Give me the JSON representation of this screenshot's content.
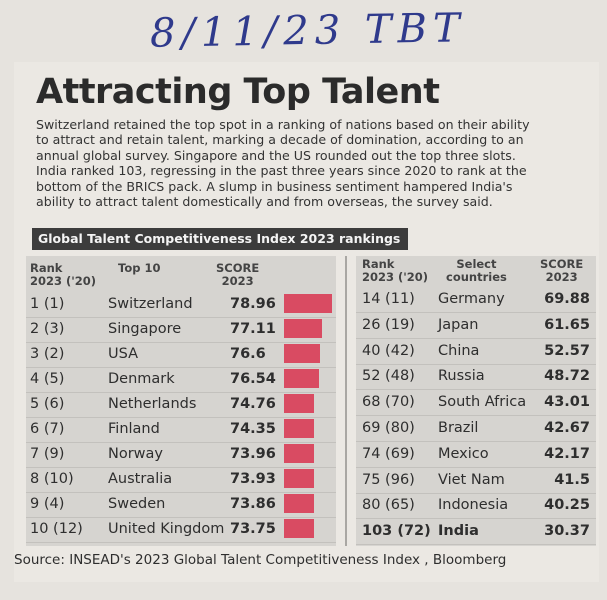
{
  "handwritten_note": "8/11/23 TBT",
  "article": {
    "title": "Attracting Top Talent",
    "intro_lines": [
      "Switzerland retained the top spot in a ranking of nations based on their ability",
      "to attract and retain talent, marking a decade of domination, according to an",
      "annual global survey. Singapore and the US rounded out the top three slots.",
      "India ranked 103, regressing in the past three years since 2020 to rank at the",
      "bottom of the BRICS pack. A slump in business sentiment hampered India's",
      "ability to attract talent domestically and from overseas, the survey said."
    ]
  },
  "table_title": "Global Talent Competitiveness Index 2023 rankings",
  "left_table": {
    "headers": {
      "rank": "Rank",
      "rank_sub": "2023 ('20)",
      "name": "Top 10",
      "score": "SCORE",
      "score_sub": "2023"
    },
    "bar_color": "#d94b62",
    "rows": [
      {
        "rank": "1 (1)",
        "country": "Switzerland",
        "score": "78.96",
        "value": 78.96
      },
      {
        "rank": "2 (3)",
        "country": "Singapore",
        "score": "77.11",
        "value": 77.11
      },
      {
        "rank": "3 (2)",
        "country": "USA",
        "score": "76.6",
        "value": 76.6
      },
      {
        "rank": "4 (5)",
        "country": "Denmark",
        "score": "76.54",
        "value": 76.54
      },
      {
        "rank": "5 (6)",
        "country": "Netherlands",
        "score": "74.76",
        "value": 74.76
      },
      {
        "rank": "6 (7)",
        "country": "Finland",
        "score": "74.35",
        "value": 74.35
      },
      {
        "rank": "7 (9)",
        "country": "Norway",
        "score": "73.96",
        "value": 73.96
      },
      {
        "rank": "8 (10)",
        "country": "Australia",
        "score": "73.93",
        "value": 73.93
      },
      {
        "rank": "9 (4)",
        "country": "Sweden",
        "score": "73.86",
        "value": 73.86
      },
      {
        "rank": "10 (12)",
        "country": "United Kingdom",
        "score": "73.75",
        "value": 73.75
      }
    ]
  },
  "right_table": {
    "headers": {
      "rank": "Rank",
      "rank_sub": "2023 ('20)",
      "name": "Select",
      "name_sub": "countries",
      "score": "SCORE",
      "score_sub": "2023"
    },
    "rows": [
      {
        "rank": "14 (11)",
        "country": "Germany",
        "score": "69.88"
      },
      {
        "rank": "26 (19)",
        "country": "Japan",
        "score": "61.65"
      },
      {
        "rank": "40 (42)",
        "country": "China",
        "score": "52.57"
      },
      {
        "rank": "52 (48)",
        "country": "Russia",
        "score": "48.72"
      },
      {
        "rank": "68 (70)",
        "country": "South Africa",
        "score": "43.01"
      },
      {
        "rank": "69 (80)",
        "country": "Brazil",
        "score": "42.67"
      },
      {
        "rank": "74 (69)",
        "country": "Mexico",
        "score": "42.17"
      },
      {
        "rank": "75 (96)",
        "country": "Viet Nam",
        "score": "41.5"
      },
      {
        "rank": "80 (65)",
        "country": "Indonesia",
        "score": "40.25"
      },
      {
        "rank": "103 (72)",
        "country": "India",
        "score": "30.37",
        "highlight": true
      }
    ]
  },
  "source": "Source: INSEAD's 2023 Global Talent Competitiveness Index , Bloomberg"
}
